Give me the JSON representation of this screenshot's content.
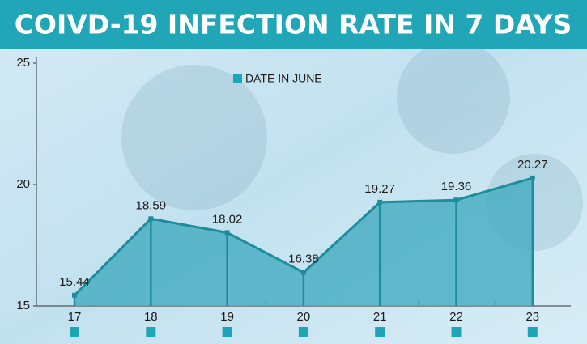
{
  "chart_data": {
    "type": "area",
    "title": "COIVD-19 INFECTION RATE IN 7 DAYS",
    "categories": [
      "17",
      "18",
      "19",
      "20",
      "21",
      "22",
      "23"
    ],
    "series": [
      {
        "name": "DATE IN JUNE",
        "color": "#1e8c9c",
        "fill": "#4aaec3",
        "values": [
          15.44,
          18.59,
          18.02,
          16.38,
          19.27,
          19.36,
          20.27
        ]
      }
    ],
    "ylim": [
      15,
      25
    ],
    "yticks": [
      15,
      20,
      25
    ],
    "legend": "top"
  }
}
